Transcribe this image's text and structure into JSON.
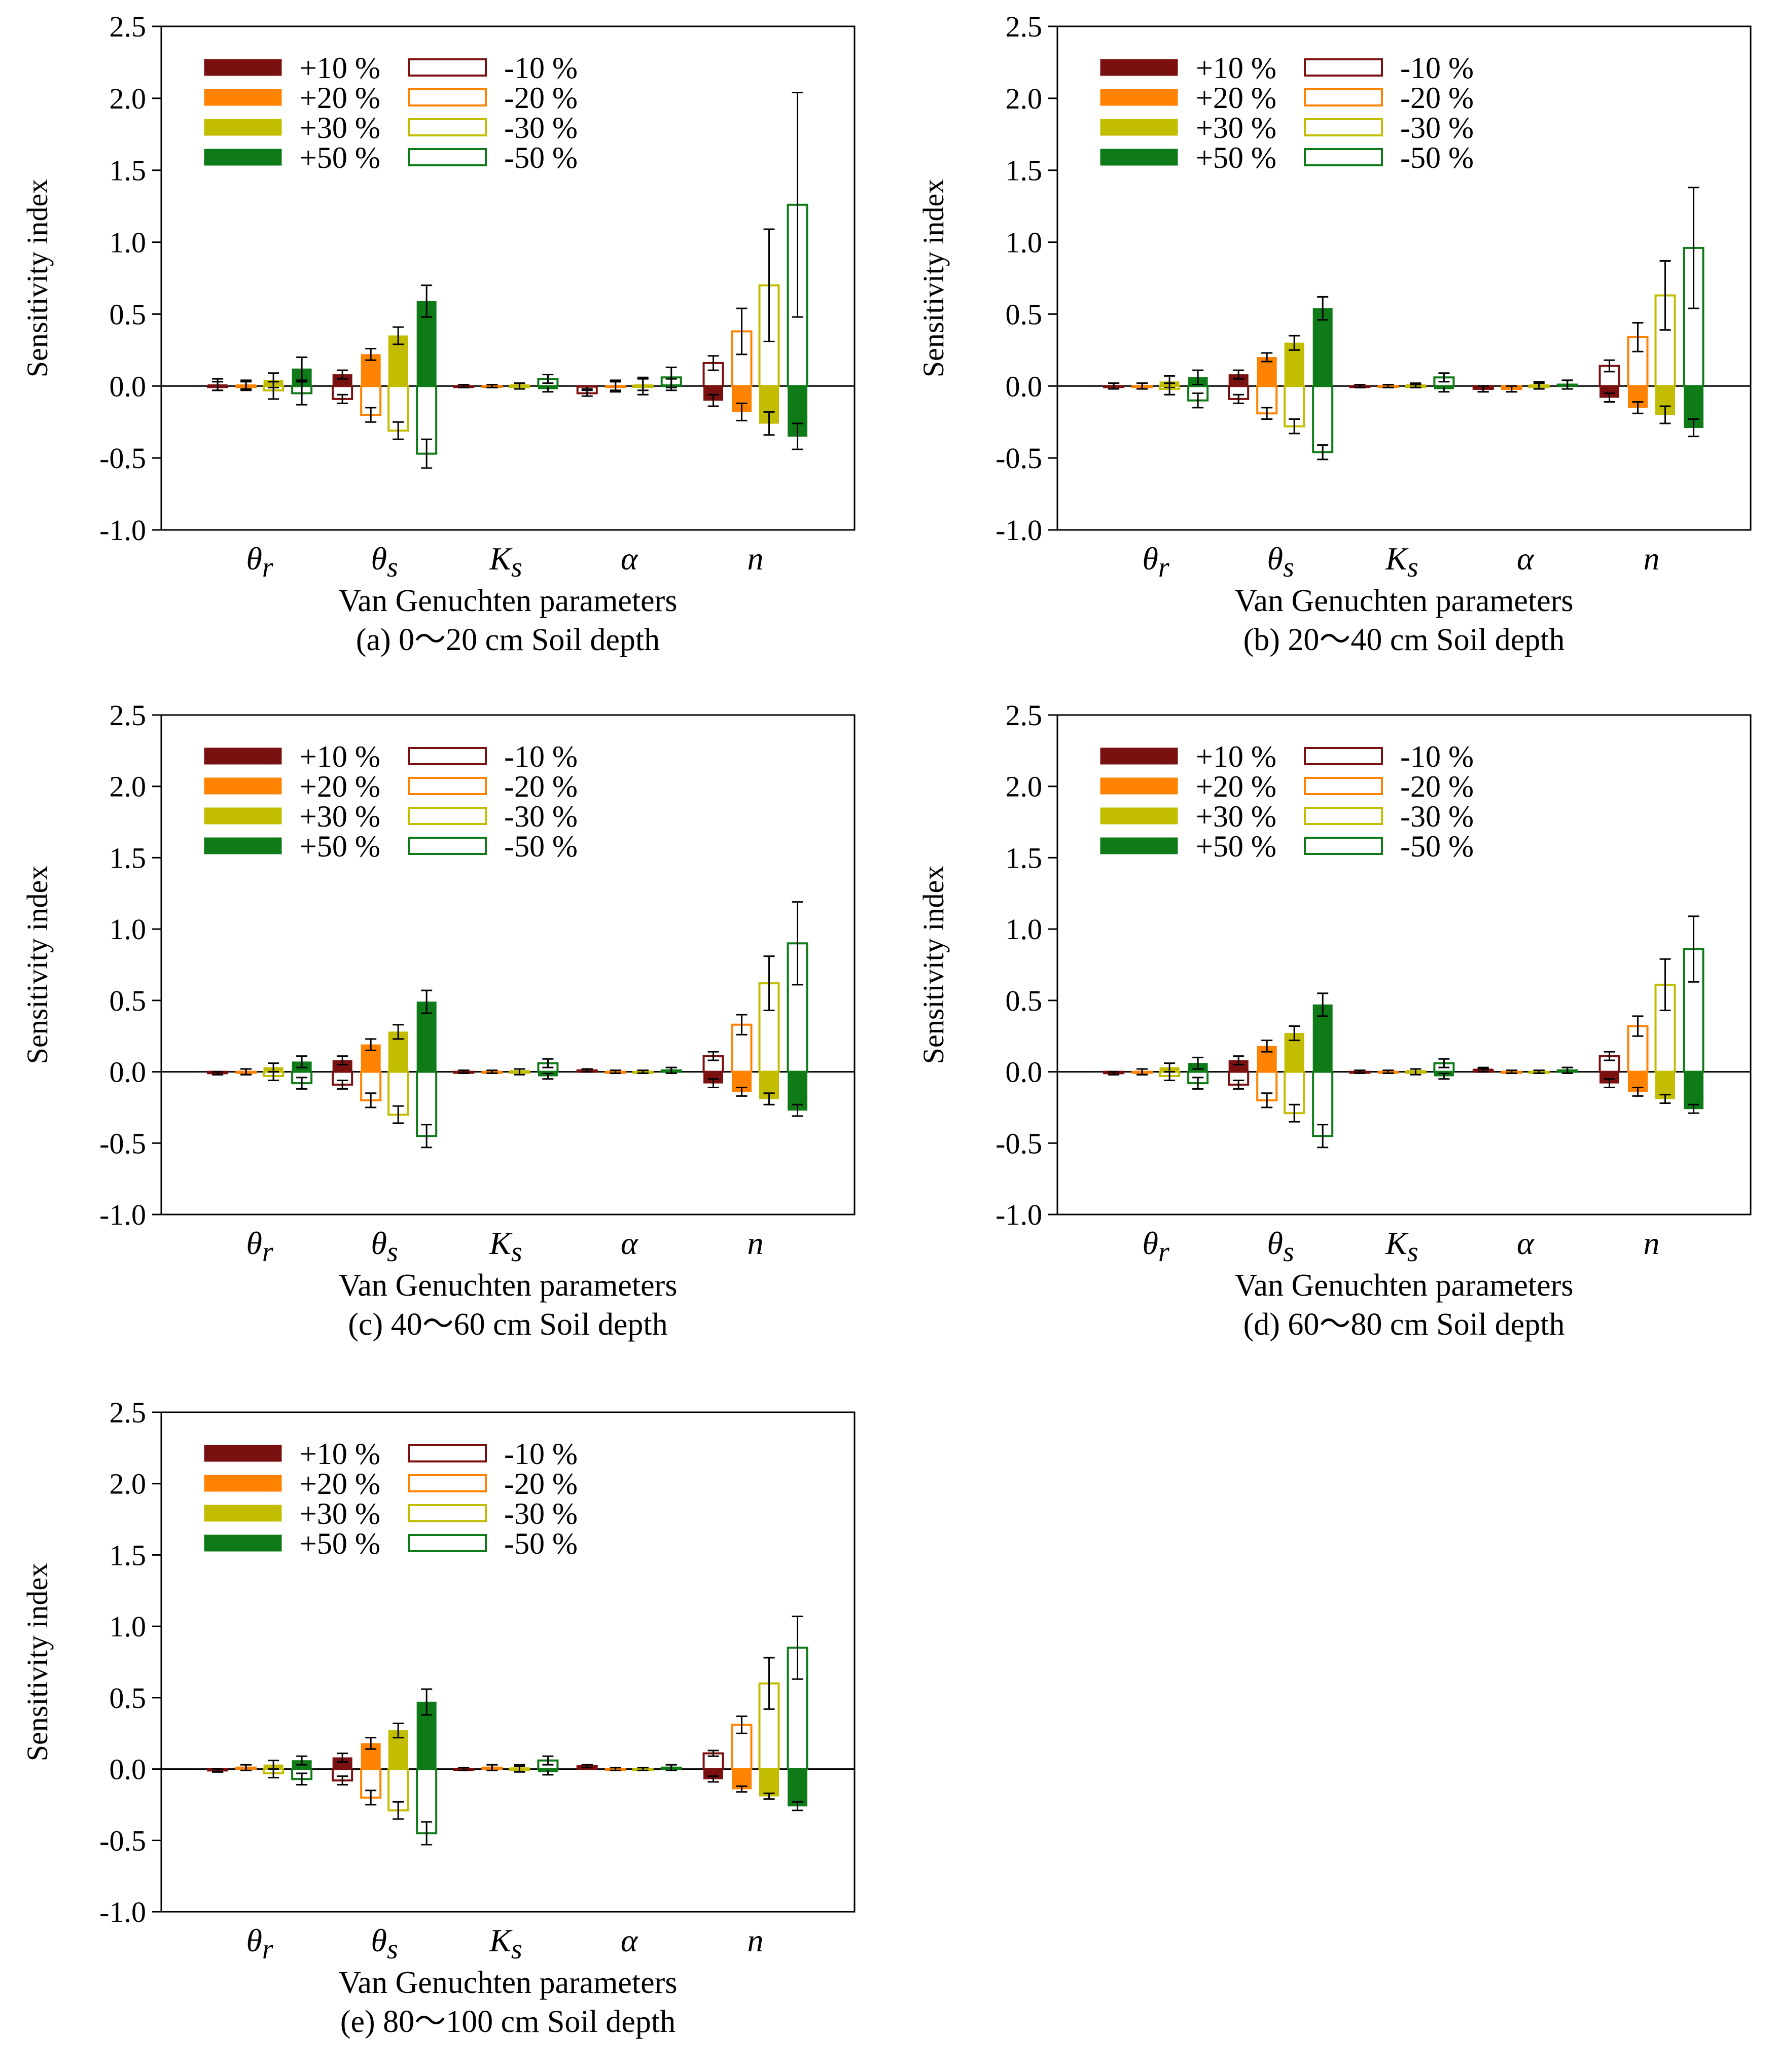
{
  "chart_data": [
    {
      "type": "bar",
      "id": "a",
      "title": "(a) 0〜20 cm Soil depth",
      "xlabel": "Van Genuchten parameters",
      "ylabel": "Sensitivity index",
      "ylim": [
        -1.0,
        2.5
      ],
      "yticks": [
        "2.5",
        "2.0",
        "1.5",
        "1.0",
        "0.5",
        "0.0",
        "-0.5",
        "-1.0"
      ],
      "categories": [
        "θr",
        "θs",
        "Ks",
        "α",
        "n"
      ],
      "series": [
        {
          "name": "+10 %",
          "pair": 0,
          "filled": true,
          "values": [
            0.01,
            0.08,
            0.0,
            -0.01,
            -0.1
          ],
          "errors": [
            0.04,
            0.03,
            0.01,
            0.01,
            0.04
          ]
        },
        {
          "name": "-10 %",
          "pair": 0,
          "filled": false,
          "values": [
            0.0,
            -0.09,
            0.0,
            -0.05,
            0.16
          ],
          "errors": [
            0.03,
            0.03,
            0.01,
            0.02,
            0.05
          ]
        },
        {
          "name": "+20 %",
          "pair": 1,
          "filled": true,
          "values": [
            0.01,
            0.22,
            0.0,
            0.0,
            -0.18
          ],
          "errors": [
            0.03,
            0.04,
            0.01,
            0.03,
            0.06
          ]
        },
        {
          "name": "-20 %",
          "pair": 1,
          "filled": false,
          "values": [
            0.0,
            -0.2,
            0.0,
            0.0,
            0.38
          ],
          "errors": [
            0.03,
            0.05,
            0.01,
            0.04,
            0.16
          ]
        },
        {
          "name": "+30 %",
          "pair": 2,
          "filled": true,
          "values": [
            0.04,
            0.35,
            0.01,
            0.01,
            -0.26
          ],
          "errors": [
            0.05,
            0.06,
            0.01,
            0.04,
            0.08
          ]
        },
        {
          "name": "-30 %",
          "pair": 2,
          "filled": false,
          "values": [
            -0.03,
            -0.31,
            0.0,
            0.0,
            0.7
          ],
          "errors": [
            0.06,
            0.06,
            0.02,
            0.06,
            0.39
          ]
        },
        {
          "name": "+50 %",
          "pair": 3,
          "filled": true,
          "values": [
            0.12,
            0.59,
            -0.02,
            0.01,
            -0.35
          ],
          "errors": [
            0.08,
            0.11,
            0.02,
            0.04,
            0.09
          ]
        },
        {
          "name": "-50 %",
          "pair": 3,
          "filled": false,
          "values": [
            -0.05,
            -0.47,
            0.05,
            0.06,
            1.26
          ],
          "errors": [
            0.08,
            0.1,
            0.03,
            0.07,
            0.78
          ]
        }
      ]
    },
    {
      "type": "bar",
      "id": "b",
      "title": "(b) 20〜40 cm Soil depth",
      "xlabel": "Van Genuchten parameters",
      "ylabel": "Sensitivity index",
      "ylim": [
        -1.0,
        2.5
      ],
      "yticks": [
        "2.5",
        "2.0",
        "1.5",
        "1.0",
        "0.5",
        "0.0",
        "-0.5",
        "-1.0"
      ],
      "categories": [
        "θr",
        "θs",
        "Ks",
        "α",
        "n"
      ],
      "series": [
        {
          "name": "+10 %",
          "pair": 0,
          "filled": true,
          "values": [
            0.0,
            0.08,
            0.0,
            -0.02,
            -0.08
          ],
          "errors": [
            0.02,
            0.03,
            0.01,
            0.02,
            0.03
          ]
        },
        {
          "name": "-10 %",
          "pair": 0,
          "filled": false,
          "values": [
            0.0,
            -0.09,
            0.0,
            -0.02,
            0.14
          ],
          "errors": [
            0.02,
            0.03,
            0.01,
            0.02,
            0.04
          ]
        },
        {
          "name": "+20 %",
          "pair": 1,
          "filled": true,
          "values": [
            0.0,
            0.2,
            0.0,
            -0.02,
            -0.15
          ],
          "errors": [
            0.02,
            0.03,
            0.01,
            0.02,
            0.04
          ]
        },
        {
          "name": "-20 %",
          "pair": 1,
          "filled": false,
          "values": [
            0.0,
            -0.19,
            0.0,
            -0.02,
            0.34
          ],
          "errors": [
            0.02,
            0.04,
            0.01,
            0.02,
            0.1
          ]
        },
        {
          "name": "+30 %",
          "pair": 2,
          "filled": true,
          "values": [
            0.03,
            0.3,
            0.01,
            0.01,
            -0.2
          ],
          "errors": [
            0.04,
            0.05,
            0.01,
            0.02,
            0.06
          ]
        },
        {
          "name": "-30 %",
          "pair": 2,
          "filled": false,
          "values": [
            -0.02,
            -0.28,
            0.0,
            0.0,
            0.63
          ],
          "errors": [
            0.04,
            0.05,
            0.01,
            0.02,
            0.24
          ]
        },
        {
          "name": "+50 %",
          "pair": 3,
          "filled": true,
          "values": [
            0.06,
            0.54,
            -0.02,
            0.01,
            -0.29
          ],
          "errors": [
            0.05,
            0.08,
            0.02,
            0.03,
            0.06
          ]
        },
        {
          "name": "-50 %",
          "pair": 3,
          "filled": false,
          "values": [
            -0.1,
            -0.46,
            0.06,
            0.01,
            0.96
          ],
          "errors": [
            0.05,
            0.05,
            0.03,
            0.03,
            0.42
          ]
        }
      ]
    },
    {
      "type": "bar",
      "id": "c",
      "title": "(c) 40〜60 cm Soil depth",
      "xlabel": "Van Genuchten parameters",
      "ylabel": "Sensitivity index",
      "ylim": [
        -1.0,
        2.5
      ],
      "yticks": [
        "2.5",
        "2.0",
        "1.5",
        "1.0",
        "0.5",
        "0.0",
        "-0.5",
        "-1.0"
      ],
      "categories": [
        "θr",
        "θs",
        "Ks",
        "α",
        "n"
      ],
      "series": [
        {
          "name": "+10 %",
          "pair": 0,
          "filled": true,
          "values": [
            -0.01,
            0.08,
            0.0,
            0.01,
            -0.08
          ],
          "errors": [
            0.01,
            0.03,
            0.01,
            0.01,
            0.03
          ]
        },
        {
          "name": "-10 %",
          "pair": 0,
          "filled": false,
          "values": [
            -0.01,
            -0.09,
            0.0,
            0.01,
            0.11
          ],
          "errors": [
            0.01,
            0.03,
            0.01,
            0.01,
            0.03
          ]
        },
        {
          "name": "+20 %",
          "pair": 1,
          "filled": true,
          "values": [
            0.0,
            0.19,
            0.0,
            0.0,
            -0.14
          ],
          "errors": [
            0.02,
            0.04,
            0.01,
            0.01,
            0.03
          ]
        },
        {
          "name": "-20 %",
          "pair": 1,
          "filled": false,
          "values": [
            0.0,
            -0.2,
            0.0,
            0.0,
            0.33
          ],
          "errors": [
            0.02,
            0.05,
            0.01,
            0.01,
            0.07
          ]
        },
        {
          "name": "+30 %",
          "pair": 2,
          "filled": true,
          "values": [
            0.03,
            0.28,
            0.01,
            0.0,
            -0.19
          ],
          "errors": [
            0.03,
            0.05,
            0.01,
            0.01,
            0.04
          ]
        },
        {
          "name": "-30 %",
          "pair": 2,
          "filled": false,
          "values": [
            -0.03,
            -0.3,
            0.0,
            0.0,
            0.62
          ],
          "errors": [
            0.03,
            0.06,
            0.02,
            0.01,
            0.19
          ]
        },
        {
          "name": "+50 %",
          "pair": 3,
          "filled": true,
          "values": [
            0.07,
            0.49,
            -0.03,
            0.01,
            -0.27
          ],
          "errors": [
            0.04,
            0.08,
            0.02,
            0.02,
            0.04
          ]
        },
        {
          "name": "-50 %",
          "pair": 3,
          "filled": false,
          "values": [
            -0.08,
            -0.45,
            0.06,
            0.01,
            0.9
          ],
          "errors": [
            0.04,
            0.08,
            0.03,
            0.02,
            0.29
          ]
        }
      ]
    },
    {
      "type": "bar",
      "id": "d",
      "title": "(d) 60〜80 cm Soil depth",
      "xlabel": "Van Genuchten parameters",
      "ylabel": "Sensitivity index",
      "ylim": [
        -1.0,
        2.5
      ],
      "yticks": [
        "2.5",
        "2.0",
        "1.5",
        "1.0",
        "0.5",
        "0.0",
        "-0.5",
        "-1.0"
      ],
      "categories": [
        "θr",
        "θs",
        "Ks",
        "α",
        "n"
      ],
      "series": [
        {
          "name": "+10 %",
          "pair": 0,
          "filled": true,
          "values": [
            -0.01,
            0.08,
            0.0,
            0.02,
            -0.08
          ],
          "errors": [
            0.01,
            0.03,
            0.01,
            0.01,
            0.03
          ]
        },
        {
          "name": "-10 %",
          "pair": 0,
          "filled": false,
          "values": [
            -0.01,
            -0.09,
            0.0,
            0.01,
            0.11
          ],
          "errors": [
            0.01,
            0.03,
            0.01,
            0.01,
            0.03
          ]
        },
        {
          "name": "+20 %",
          "pair": 1,
          "filled": true,
          "values": [
            0.0,
            0.18,
            0.0,
            0.0,
            -0.14
          ],
          "errors": [
            0.02,
            0.04,
            0.01,
            0.01,
            0.03
          ]
        },
        {
          "name": "-20 %",
          "pair": 1,
          "filled": false,
          "values": [
            0.0,
            -0.2,
            0.0,
            0.0,
            0.32
          ],
          "errors": [
            0.02,
            0.05,
            0.01,
            0.01,
            0.07
          ]
        },
        {
          "name": "+30 %",
          "pair": 2,
          "filled": true,
          "values": [
            0.03,
            0.27,
            0.01,
            0.0,
            -0.19
          ],
          "errors": [
            0.03,
            0.05,
            0.01,
            0.01,
            0.03
          ]
        },
        {
          "name": "-30 %",
          "pair": 2,
          "filled": false,
          "values": [
            -0.03,
            -0.29,
            0.0,
            0.0,
            0.61
          ],
          "errors": [
            0.03,
            0.06,
            0.02,
            0.01,
            0.18
          ]
        },
        {
          "name": "+50 %",
          "pair": 3,
          "filled": true,
          "values": [
            0.06,
            0.47,
            -0.03,
            0.01,
            -0.26
          ],
          "errors": [
            0.04,
            0.08,
            0.02,
            0.02,
            0.03
          ]
        },
        {
          "name": "-50 %",
          "pair": 3,
          "filled": false,
          "values": [
            -0.08,
            -0.45,
            0.06,
            0.01,
            0.86
          ],
          "errors": [
            0.04,
            0.08,
            0.03,
            0.02,
            0.23
          ]
        }
      ]
    },
    {
      "type": "bar",
      "id": "e",
      "title": "(e) 80〜100 cm Soil depth",
      "xlabel": "Van Genuchten parameters",
      "ylabel": "Sensitivity index",
      "ylim": [
        -1.0,
        2.5
      ],
      "yticks": [
        "2.5",
        "2.0",
        "1.5",
        "1.0",
        "0.5",
        "0.0",
        "-0.5",
        "-1.0"
      ],
      "categories": [
        "θr",
        "θs",
        "Ks",
        "α",
        "n"
      ],
      "series": [
        {
          "name": "+10 %",
          "pair": 0,
          "filled": true,
          "values": [
            -0.01,
            0.08,
            0.0,
            0.02,
            -0.07
          ],
          "errors": [
            0.01,
            0.03,
            0.01,
            0.01,
            0.02
          ]
        },
        {
          "name": "-10 %",
          "pair": 0,
          "filled": false,
          "values": [
            -0.01,
            -0.08,
            0.0,
            0.02,
            0.11
          ],
          "errors": [
            0.01,
            0.03,
            0.01,
            0.01,
            0.02
          ]
        },
        {
          "name": "+20 %",
          "pair": 1,
          "filled": true,
          "values": [
            0.01,
            0.18,
            0.01,
            0.0,
            -0.14
          ],
          "errors": [
            0.02,
            0.04,
            0.02,
            0.01,
            0.02
          ]
        },
        {
          "name": "-20 %",
          "pair": 1,
          "filled": false,
          "values": [
            0.01,
            -0.2,
            0.01,
            0.0,
            0.31
          ],
          "errors": [
            0.02,
            0.05,
            0.02,
            0.01,
            0.06
          ]
        },
        {
          "name": "+30 %",
          "pair": 2,
          "filled": true,
          "values": [
            0.03,
            0.27,
            0.01,
            0.0,
            -0.19
          ],
          "errors": [
            0.03,
            0.05,
            0.02,
            0.01,
            0.02
          ]
        },
        {
          "name": "-30 %",
          "pair": 2,
          "filled": false,
          "values": [
            -0.03,
            -0.29,
            0.0,
            0.0,
            0.6
          ],
          "errors": [
            0.03,
            0.06,
            0.02,
            0.01,
            0.18
          ]
        },
        {
          "name": "+50 %",
          "pair": 3,
          "filled": true,
          "values": [
            0.06,
            0.47,
            -0.02,
            0.01,
            -0.26
          ],
          "errors": [
            0.03,
            0.09,
            0.02,
            0.02,
            0.03
          ]
        },
        {
          "name": "-50 %",
          "pair": 3,
          "filled": false,
          "values": [
            -0.07,
            -0.45,
            0.06,
            0.01,
            0.85
          ],
          "errors": [
            0.04,
            0.08,
            0.03,
            0.02,
            0.22
          ]
        }
      ]
    }
  ],
  "legend": {
    "entries": [
      {
        "label": "+10 %",
        "color": "#7b1010",
        "filled": true
      },
      {
        "label": "+20 %",
        "color": "#ff8200",
        "filled": true
      },
      {
        "label": "+30 %",
        "color": "#c2bd00",
        "filled": true
      },
      {
        "label": "+50 %",
        "color": "#0f7a18",
        "filled": true
      },
      {
        "label": "-10 %",
        "color": "#7b1010",
        "filled": false
      },
      {
        "label": "-20 %",
        "color": "#ff8200",
        "filled": false
      },
      {
        "label": "-30 %",
        "color": "#c2bd00",
        "filled": false
      },
      {
        "label": "-50 %",
        "color": "#0f7a18",
        "filled": false
      }
    ],
    "placement": "top-left"
  },
  "colors": [
    "#7b1010",
    "#ff8200",
    "#c2bd00",
    "#0f7a18"
  ]
}
